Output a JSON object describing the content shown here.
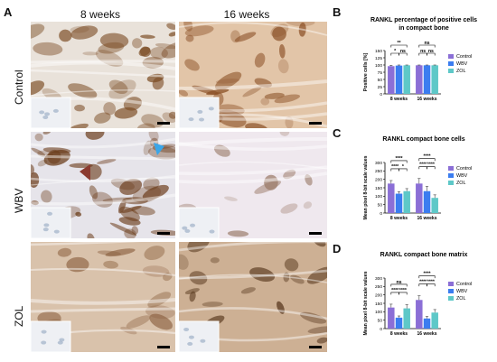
{
  "panel_a": {
    "letter": "A",
    "columns": [
      "8 weeks",
      "16 weeks"
    ],
    "rows": [
      "Control",
      "WBV",
      "ZOL"
    ]
  },
  "panels": [
    {
      "letter": "B"
    },
    {
      "letter": "C"
    },
    {
      "letter": "D"
    }
  ],
  "colors": {
    "Control": "#8b6fd6",
    "WBV": "#3b7df0",
    "ZOL": "#5ec8c8"
  },
  "chart_data": [
    {
      "type": "bar",
      "title": "RANKL percentage of positive cells in compact bone",
      "title_lines": [
        "RANKL percentage of positive cells",
        "in compact bone"
      ],
      "ylabel": "Positive cells [%]",
      "ylim": [
        0,
        150
      ],
      "yticks": [
        0,
        25,
        50,
        75,
        100,
        125,
        150
      ],
      "categories": [
        "8 weeks",
        "16 weeks"
      ],
      "series": [
        {
          "name": "Control",
          "values": [
            96,
            99
          ],
          "errors": [
            3,
            1
          ]
        },
        {
          "name": "WBV",
          "values": [
            98,
            99
          ],
          "errors": [
            2,
            1
          ]
        },
        {
          "name": "ZOL",
          "values": [
            99,
            99
          ],
          "errors": [
            1,
            1
          ]
        }
      ],
      "legend": "right",
      "significance": [
        {
          "group": 0,
          "from": 0,
          "to": 2,
          "label": "**",
          "level": 2
        },
        {
          "group": 0,
          "from": 0,
          "to": 1,
          "label": "*",
          "level": 1
        },
        {
          "group": 0,
          "from": 1,
          "to": 2,
          "label": "ns",
          "level": 1
        },
        {
          "group": 1,
          "from": 0,
          "to": 2,
          "label": "ns",
          "level": 2
        },
        {
          "group": 1,
          "from": 0,
          "to": 1,
          "label": "ns",
          "level": 1
        },
        {
          "group": 1,
          "from": 1,
          "to": 2,
          "label": "ns",
          "level": 1
        }
      ]
    },
    {
      "type": "bar",
      "title": "RANKL compact bone cells",
      "title_lines": [
        "RANKL compact bone cells"
      ],
      "ylabel": "Mean pixel 8-bit scale values",
      "ylim": [
        0,
        300
      ],
      "yticks": [
        0,
        50,
        100,
        150,
        200,
        250,
        300
      ],
      "categories": [
        "8 weeks",
        "16 weeks"
      ],
      "series": [
        {
          "name": "Control",
          "values": [
            175,
            175
          ],
          "errors": [
            18,
            30
          ]
        },
        {
          "name": "WBV",
          "values": [
            115,
            130
          ],
          "errors": [
            12,
            28
          ]
        },
        {
          "name": "ZOL",
          "values": [
            130,
            90
          ],
          "errors": [
            15,
            18
          ]
        }
      ],
      "legend": "right",
      "significance": [
        {
          "group": 0,
          "from": 0,
          "to": 2,
          "label": "****",
          "level": 2
        },
        {
          "group": 0,
          "from": 0,
          "to": 1,
          "label": "****",
          "level": 1
        },
        {
          "group": 0,
          "from": 1,
          "to": 2,
          "label": "*",
          "level": 1
        },
        {
          "group": 1,
          "from": 0,
          "to": 2,
          "label": "****",
          "level": 2
        },
        {
          "group": 1,
          "from": 0,
          "to": 1,
          "label": "****",
          "level": 1
        },
        {
          "group": 1,
          "from": 1,
          "to": 2,
          "label": "****",
          "level": 1
        }
      ]
    },
    {
      "type": "bar",
      "title": "RANKL compact bone matrix",
      "title_lines": [
        "RANKL compact bone matrix"
      ],
      "ylabel": "Mean pixel 8-bit scale values",
      "ylim": [
        0,
        300
      ],
      "yticks": [
        0,
        50,
        100,
        150,
        200,
        250,
        300
      ],
      "categories": [
        "8 weeks",
        "16 weeks"
      ],
      "series": [
        {
          "name": "Control",
          "values": [
            125,
            170
          ],
          "errors": [
            20,
            25
          ]
        },
        {
          "name": "WBV",
          "values": [
            65,
            60
          ],
          "errors": [
            10,
            12
          ]
        },
        {
          "name": "ZOL",
          "values": [
            120,
            95
          ],
          "errors": [
            22,
            18
          ]
        }
      ],
      "legend": "right",
      "significance": [
        {
          "group": 0,
          "from": 0,
          "to": 2,
          "label": "ns",
          "level": 2
        },
        {
          "group": 0,
          "from": 0,
          "to": 1,
          "label": "****",
          "level": 1
        },
        {
          "group": 0,
          "from": 1,
          "to": 2,
          "label": "****",
          "level": 1
        },
        {
          "group": 1,
          "from": 0,
          "to": 2,
          "label": "****",
          "level": 2
        },
        {
          "group": 1,
          "from": 0,
          "to": 1,
          "label": "****",
          "level": 1
        },
        {
          "group": 1,
          "from": 1,
          "to": 2,
          "label": "****",
          "level": 1
        }
      ]
    }
  ]
}
